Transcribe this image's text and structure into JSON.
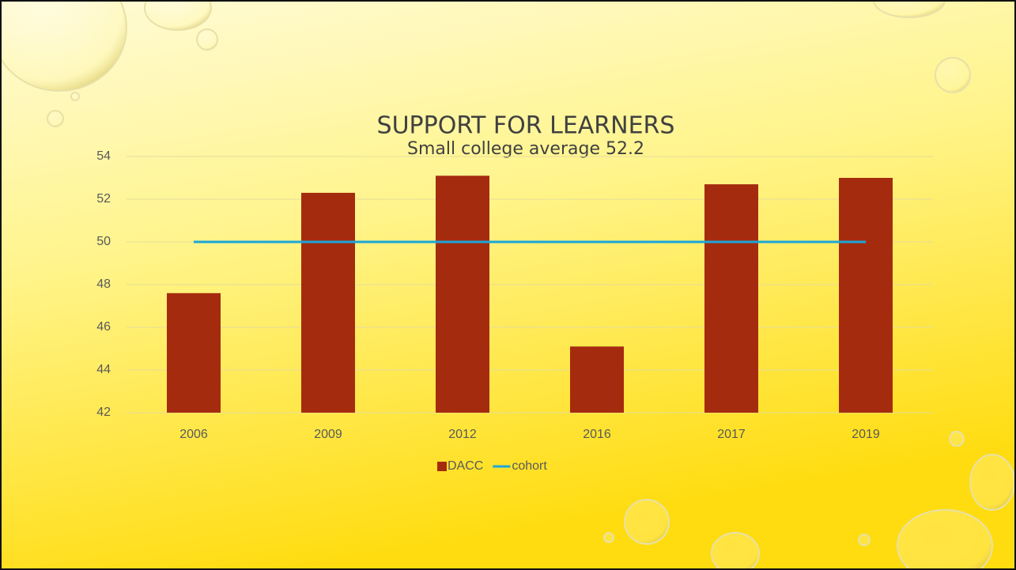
{
  "chart_data": {
    "type": "bar",
    "title": "SUPPORT FOR LEARNERS",
    "subtitle": "Small college average 52.2",
    "categories": [
      "2006",
      "2009",
      "2012",
      "2016",
      "2017",
      "2019"
    ],
    "series": [
      {
        "name": "DACC",
        "type": "bar",
        "color": "#a52b0f",
        "values": [
          47.6,
          52.3,
          53.1,
          45.1,
          52.7,
          53.0
        ]
      },
      {
        "name": "cohort",
        "type": "line",
        "color": "#1ba6d8",
        "values": [
          50,
          50,
          50,
          50,
          50,
          50
        ]
      }
    ],
    "ylim": [
      42,
      54
    ],
    "yticks": [
      42,
      44,
      46,
      48,
      50,
      52,
      54
    ],
    "grid": true,
    "legend": "bottom"
  }
}
